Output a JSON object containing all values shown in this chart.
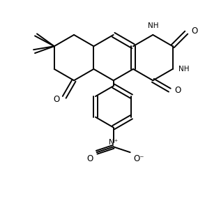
{
  "bg_color": "#ffffff",
  "line_color": "#000000",
  "line_width": 1.4,
  "font_size": 7.5,
  "figsize": [
    2.94,
    2.88
  ],
  "dpi": 100,
  "xlim": [
    0,
    294
  ],
  "ylim": [
    0,
    288
  ]
}
